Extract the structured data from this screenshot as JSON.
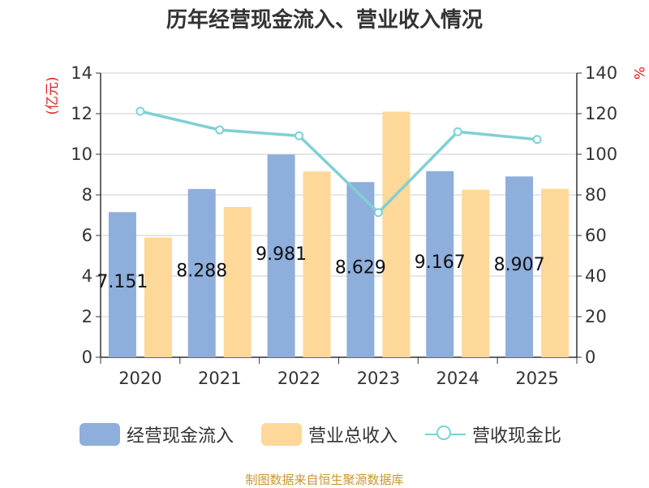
{
  "chart_data": {
    "type": "bar+line",
    "title": "历年经营现金流入、营业收入情况",
    "categories": [
      "2020",
      "2021",
      "2022",
      "2023",
      "2024",
      "2025"
    ],
    "series": [
      {
        "name": "经营现金流入",
        "type": "bar",
        "axis": "left",
        "color": "#8eaedb",
        "values": [
          7.151,
          8.288,
          9.981,
          8.629,
          9.167,
          8.907
        ]
      },
      {
        "name": "营业总收入",
        "type": "bar",
        "axis": "left",
        "color": "#fdd899",
        "values": [
          5.9,
          7.4,
          9.15,
          12.1,
          8.25,
          8.3
        ]
      },
      {
        "name": "营收现金比",
        "type": "line",
        "axis": "right",
        "color": "#7fd0d4",
        "values": [
          121.2,
          112.0,
          109.1,
          71.3,
          111.1,
          107.3
        ]
      }
    ],
    "data_labels": [
      "7.151",
      "8.288",
      "9.981",
      "8.629",
      "9.167",
      "8.907"
    ],
    "y_left": {
      "label": "(亿元)",
      "ticks": [
        "0",
        "2",
        "4",
        "6",
        "8",
        "10",
        "12",
        "14"
      ],
      "min": 0,
      "max": 14
    },
    "y_right": {
      "label": "%",
      "ticks": [
        "0",
        "20",
        "40",
        "60",
        "80",
        "100",
        "120",
        "140"
      ],
      "min": 0,
      "max": 140
    },
    "grid": true,
    "legend_position": "bottom"
  },
  "legend": {
    "cash": "经营现金流入",
    "revenue": "营业总收入",
    "ratio": "营收现金比"
  },
  "source_text": "制图数据来自恒生聚源数据库",
  "colors": {
    "cash": "#8eaedb",
    "revenue": "#fdd899",
    "ratio": "#7fd0d4",
    "axis_label": "#e02020",
    "source": "#c8962e"
  }
}
